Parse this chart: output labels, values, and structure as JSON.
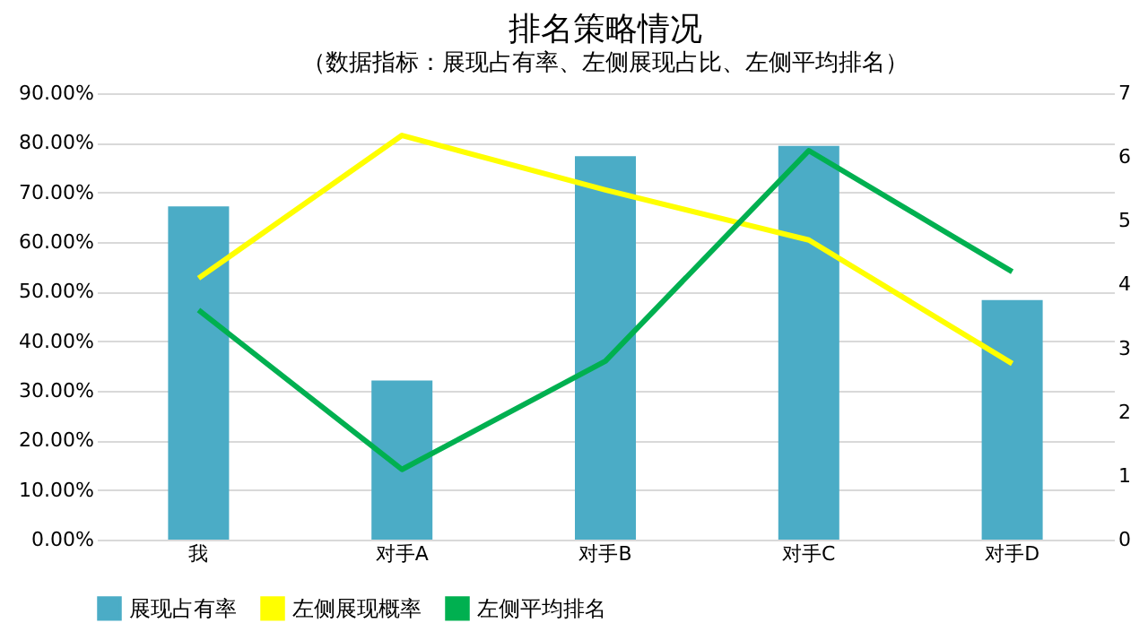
{
  "chart_data": {
    "type": "bar",
    "title": "排名策略情况",
    "subtitle": "（数据指标：展现占有率、左侧展现占比、左侧平均排名）",
    "categories": [
      "我",
      "对手A",
      "对手B",
      "对手C",
      "对手D"
    ],
    "series": [
      {
        "name": "展现占有率",
        "color": "#4bacc6",
        "values": [
          67.2,
          32.1,
          77.3,
          79.4,
          48.3
        ]
      },
      {
        "name": "左侧展现概率",
        "type": "line",
        "color": "#ffff00",
        "values": [
          52.7,
          81.5,
          70.5,
          60.4,
          35.5
        ]
      },
      {
        "name": "左侧平均排名",
        "type": "line",
        "axis": "y2",
        "color": "#00b050",
        "values": [
          3.6,
          1.1,
          2.8,
          6.1,
          4.2
        ]
      }
    ],
    "ylim": [
      0,
      90
    ],
    "yticks": [
      {
        "value": 0,
        "label": "0.00%"
      },
      {
        "value": 10,
        "label": "10.00%"
      },
      {
        "value": 20,
        "label": "20.00%"
      },
      {
        "value": 30,
        "label": "30.00%"
      },
      {
        "value": 40,
        "label": "40.00%"
      },
      {
        "value": 50,
        "label": "50.00%"
      },
      {
        "value": 60,
        "label": "60.00%"
      },
      {
        "value": 70,
        "label": "70.00%"
      },
      {
        "value": 80,
        "label": "80.00%"
      },
      {
        "value": 90,
        "label": "90.00%"
      }
    ],
    "y2lim": [
      0,
      7
    ],
    "y2ticks": [
      0,
      1,
      2,
      3,
      4,
      5,
      6,
      7
    ],
    "grid": "y",
    "legend": "bottom"
  }
}
